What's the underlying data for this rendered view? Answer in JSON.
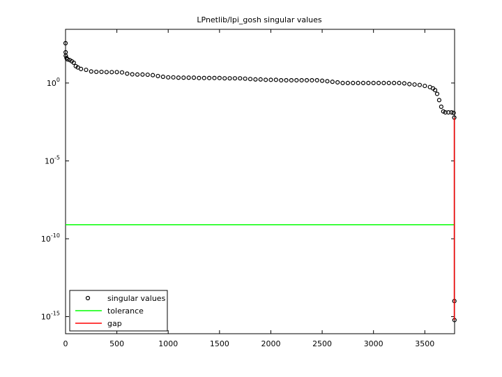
{
  "chart_data": {
    "type": "scatter",
    "title": "LPnetlib/lpi_gosh singular values",
    "log_y": true,
    "legend": "lower-left",
    "xlim": [
      0,
      3790
    ],
    "ylim": [
      8e-17,
      2800
    ],
    "xticks": [
      0,
      500,
      1000,
      1500,
      2000,
      2500,
      3000,
      3500
    ],
    "yticks": [
      {
        "value": 1e-15,
        "label": "10^-15"
      },
      {
        "value": 1e-10,
        "label": "10^-10"
      },
      {
        "value": 1e-05,
        "label": "10^-5"
      },
      {
        "value": 1,
        "label": "10^0"
      }
    ],
    "series": [
      {
        "name": "singular values",
        "color": "#000000",
        "style": "markers",
        "x": [
          0,
          1,
          2,
          10,
          20,
          40,
          60,
          80,
          100,
          120,
          150,
          200,
          250,
          300,
          350,
          400,
          450,
          500,
          550,
          600,
          650,
          700,
          750,
          800,
          850,
          900,
          950,
          1000,
          1050,
          1100,
          1150,
          1200,
          1250,
          1300,
          1350,
          1400,
          1450,
          1500,
          1550,
          1600,
          1650,
          1700,
          1750,
          1800,
          1850,
          1900,
          1950,
          2000,
          2050,
          2100,
          2150,
          2200,
          2250,
          2300,
          2350,
          2400,
          2450,
          2500,
          2550,
          2600,
          2650,
          2700,
          2750,
          2800,
          2850,
          2900,
          2950,
          3000,
          3050,
          3100,
          3150,
          3200,
          3250,
          3300,
          3350,
          3400,
          3450,
          3500,
          3550,
          3580,
          3600,
          3620,
          3640,
          3660,
          3680,
          3700,
          3730,
          3760,
          3780,
          3787,
          3788,
          3789
        ],
        "values": [
          360,
          94,
          56,
          40,
          33,
          30,
          25,
          20,
          12,
          10,
          8,
          7,
          5.5,
          5.2,
          5.2,
          5,
          5,
          5,
          4.8,
          4,
          3.6,
          3.5,
          3.5,
          3.4,
          3.2,
          2.8,
          2.5,
          2.3,
          2.3,
          2.2,
          2.2,
          2.2,
          2.2,
          2.1,
          2.1,
          2.1,
          2.1,
          2.1,
          2.0,
          2.0,
          2.0,
          2.0,
          1.9,
          1.8,
          1.7,
          1.7,
          1.6,
          1.6,
          1.6,
          1.5,
          1.5,
          1.5,
          1.5,
          1.5,
          1.5,
          1.5,
          1.5,
          1.4,
          1.3,
          1.2,
          1.1,
          1.0,
          1.0,
          1.0,
          1.0,
          1.0,
          1.0,
          1.0,
          1.0,
          1.0,
          1.0,
          1.0,
          1.0,
          0.95,
          0.85,
          0.8,
          0.75,
          0.65,
          0.55,
          0.45,
          0.35,
          0.2,
          0.08,
          0.03,
          0.015,
          0.013,
          0.013,
          0.013,
          0.012,
          0.006,
          1e-14,
          6e-16
        ]
      },
      {
        "name": "tolerance",
        "color": "#00ff00",
        "style": "line",
        "x": [
          0,
          3790
        ],
        "values": [
          8e-10,
          8e-10
        ]
      },
      {
        "name": "gap",
        "color": "#ff0000",
        "style": "line",
        "x": [
          3787,
          3787
        ],
        "values": [
          0.006,
          6e-16
        ]
      }
    ]
  }
}
